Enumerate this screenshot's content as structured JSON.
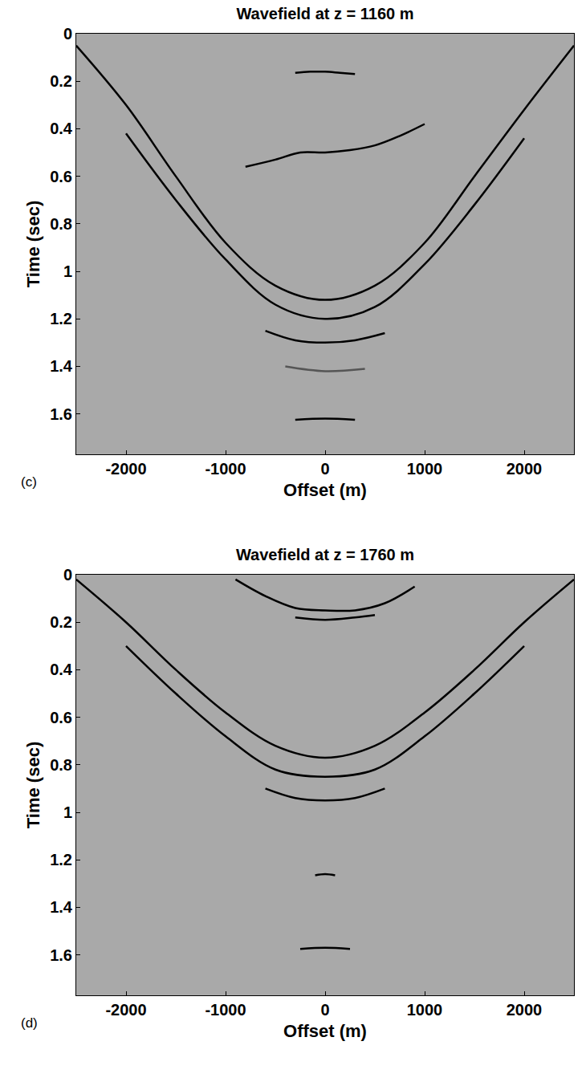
{
  "chart_data": [
    {
      "type": "line",
      "title": "Wavefield at z = 1160 m",
      "x_label": "Offset (m)",
      "y_label": "Time (sec)",
      "annotations": [
        "(c)"
      ],
      "xlim": [
        -2500,
        2500
      ],
      "xticks": [
        -2000,
        -1000,
        0,
        1000,
        2000
      ],
      "ylim": [
        0,
        1.77
      ],
      "yticks": [
        0,
        0.2,
        0.4,
        0.6,
        0.8,
        1,
        1.2,
        1.4,
        1.6
      ],
      "series": [
        {
          "x": [
            -300,
            -150,
            0,
            150,
            300
          ],
          "values": [
            0.165,
            0.16,
            0.16,
            0.165,
            0.17
          ],
          "color": "#000000"
        },
        {
          "x": [
            -800,
            -500,
            -250,
            0,
            250,
            500,
            750,
            1000
          ],
          "values": [
            0.56,
            0.53,
            0.5,
            0.5,
            0.49,
            0.47,
            0.43,
            0.38
          ],
          "color": "#000000"
        },
        {
          "x": [
            -2500,
            -2000,
            -1500,
            -1000,
            -500,
            0,
            500,
            1000,
            1500,
            2000,
            2500
          ],
          "values": [
            0.05,
            0.3,
            0.6,
            0.88,
            1.06,
            1.12,
            1.06,
            0.88,
            0.6,
            0.32,
            0.05
          ],
          "color": "#000000"
        },
        {
          "x": [
            -2000,
            -1500,
            -1000,
            -500,
            0,
            500,
            1000,
            1500,
            2000
          ],
          "values": [
            0.42,
            0.7,
            0.95,
            1.14,
            1.2,
            1.15,
            0.97,
            0.72,
            0.44
          ],
          "color": "#000000"
        },
        {
          "x": [
            -600,
            -300,
            0,
            300,
            600
          ],
          "values": [
            1.25,
            1.29,
            1.3,
            1.29,
            1.26
          ],
          "color": "#000000"
        },
        {
          "x": [
            -400,
            0,
            400
          ],
          "values": [
            1.4,
            1.42,
            1.41
          ],
          "color": "#555555"
        },
        {
          "x": [
            -300,
            0,
            300
          ],
          "values": [
            1.625,
            1.62,
            1.625
          ],
          "color": "#000000"
        }
      ]
    },
    {
      "type": "line",
      "title": "Wavefield at z = 1760 m",
      "x_label": "Offset (m)",
      "y_label": "Time (sec)",
      "annotations": [
        "(d)"
      ],
      "xlim": [
        -2500,
        2500
      ],
      "xticks": [
        -2000,
        -1000,
        0,
        1000,
        2000
      ],
      "ylim": [
        0,
        1.77
      ],
      "yticks": [
        0,
        0.2,
        0.4,
        0.6,
        0.8,
        1,
        1.2,
        1.4,
        1.6
      ],
      "series": [
        {
          "x": [
            -900,
            -600,
            -300,
            0,
            300,
            600,
            900
          ],
          "values": [
            0.02,
            0.09,
            0.14,
            0.15,
            0.15,
            0.12,
            0.05
          ],
          "color": "#000000"
        },
        {
          "x": [
            -300,
            0,
            300,
            500
          ],
          "values": [
            0.18,
            0.19,
            0.18,
            0.17
          ],
          "color": "#000000"
        },
        {
          "x": [
            -2500,
            -2000,
            -1500,
            -1000,
            -500,
            0,
            500,
            1000,
            1500,
            2000,
            2500
          ],
          "values": [
            0.02,
            0.2,
            0.4,
            0.58,
            0.72,
            0.77,
            0.72,
            0.58,
            0.4,
            0.2,
            0.02
          ],
          "color": "#000000"
        },
        {
          "x": [
            -2000,
            -1500,
            -1000,
            -500,
            0,
            500,
            1000,
            1500,
            2000
          ],
          "values": [
            0.3,
            0.5,
            0.68,
            0.82,
            0.85,
            0.82,
            0.68,
            0.5,
            0.3
          ],
          "color": "#000000"
        },
        {
          "x": [
            -600,
            -300,
            0,
            300,
            600
          ],
          "values": [
            0.9,
            0.94,
            0.95,
            0.94,
            0.9
          ],
          "color": "#000000"
        },
        {
          "x": [
            -100,
            0,
            100
          ],
          "values": [
            1.265,
            1.26,
            1.265
          ],
          "color": "#000000"
        },
        {
          "x": [
            -250,
            0,
            250
          ],
          "values": [
            1.575,
            1.57,
            1.575
          ],
          "color": "#000000"
        }
      ]
    }
  ]
}
